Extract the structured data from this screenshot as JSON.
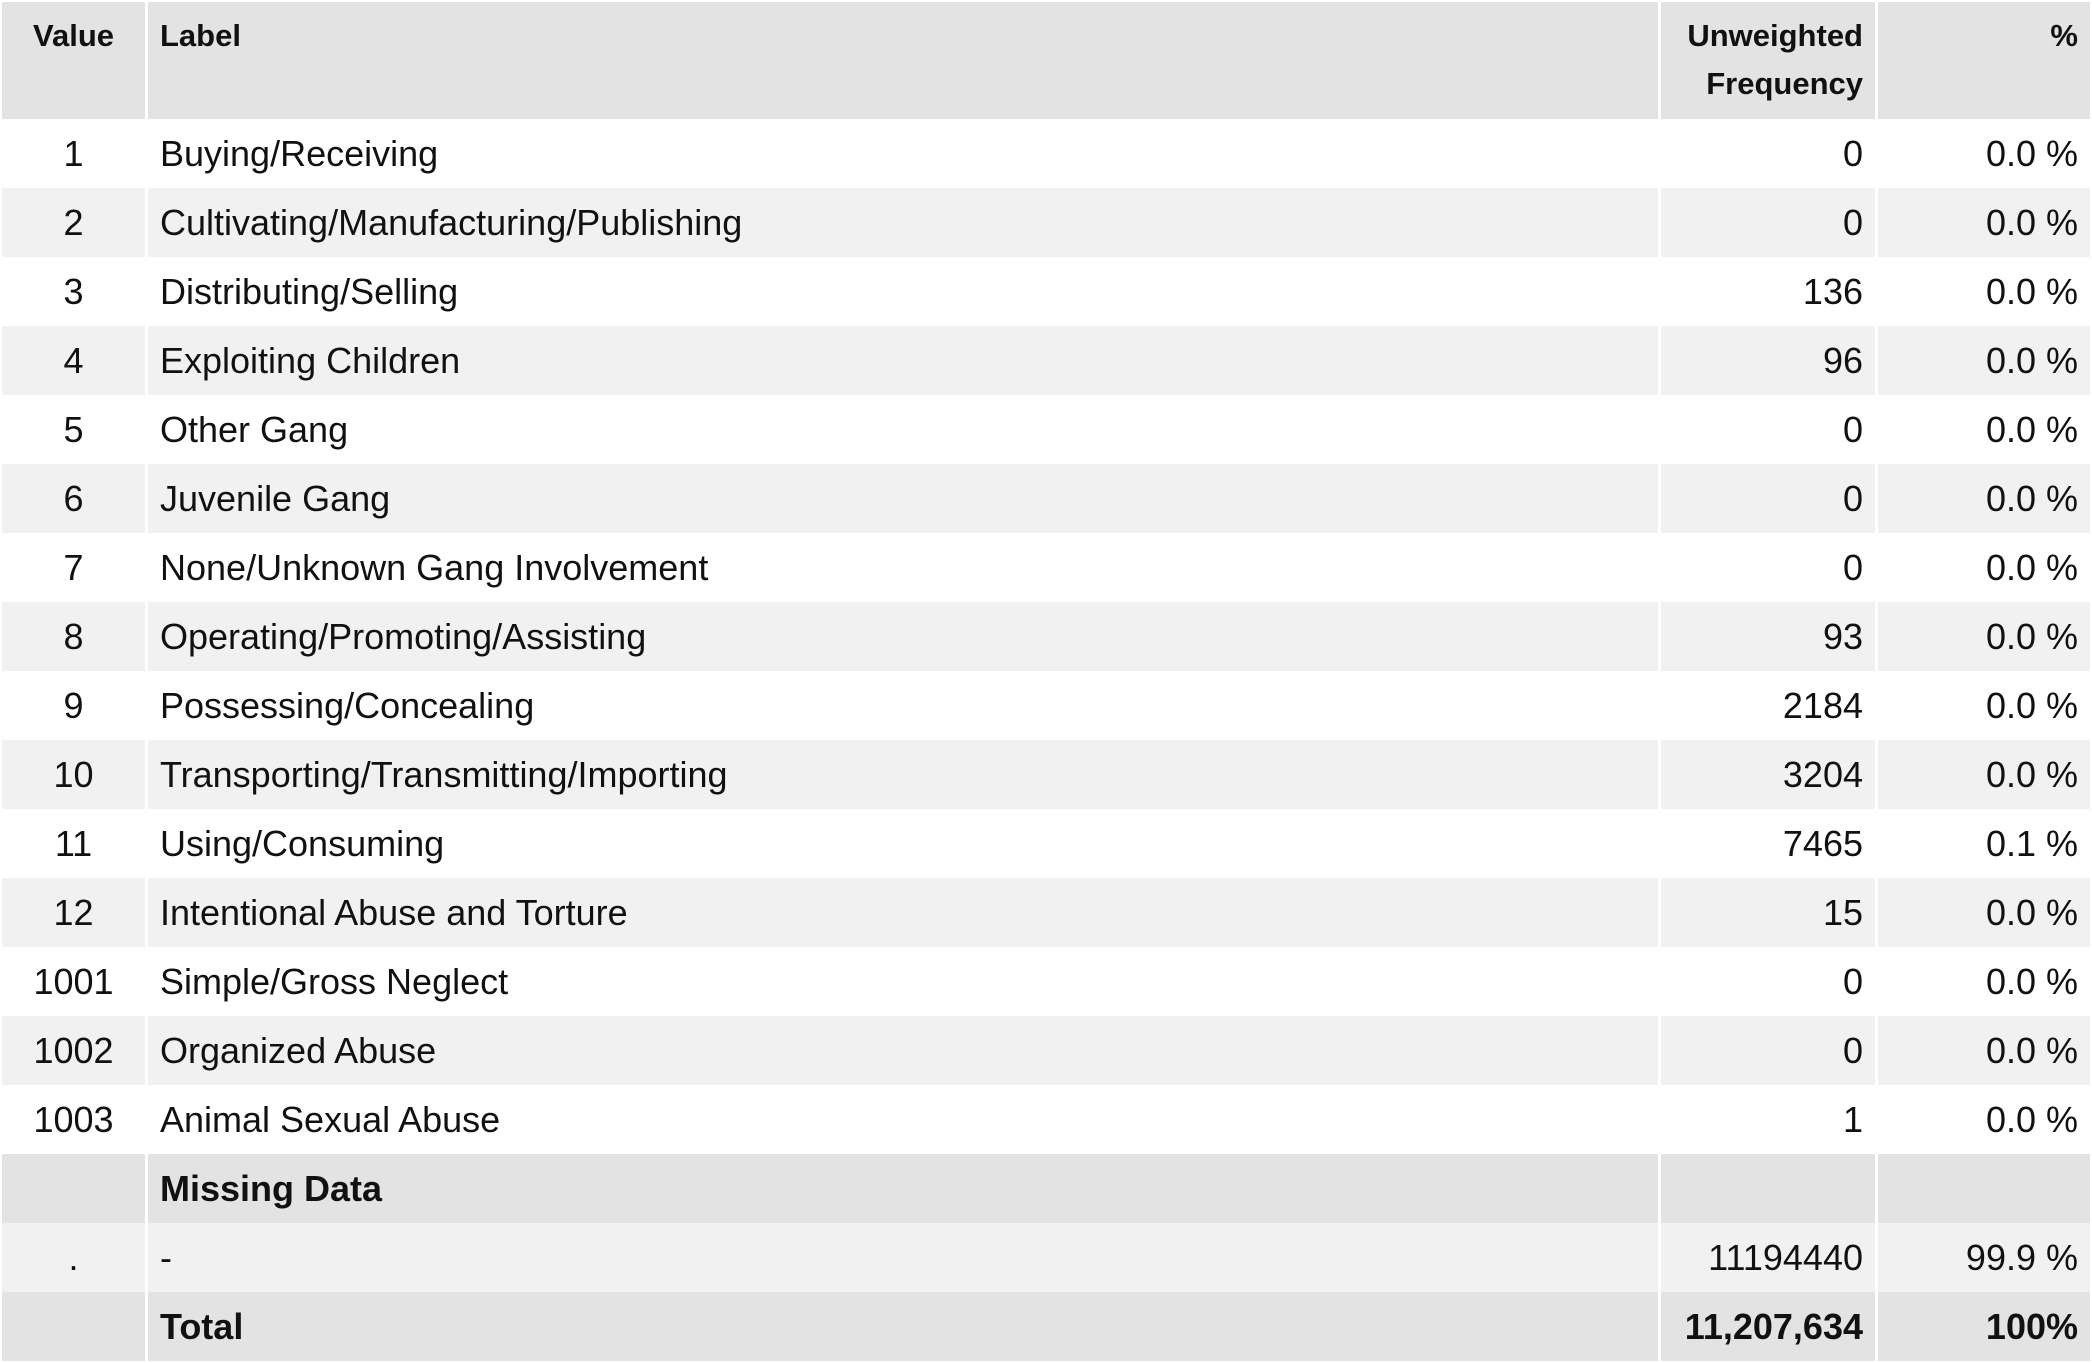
{
  "headers": {
    "value": "Value",
    "label": "Label",
    "frequency_line1": "Unweighted",
    "frequency_line2": "Frequency",
    "percent": "%"
  },
  "rows": [
    {
      "value": "1",
      "label": "Buying/Receiving",
      "frequency": "0",
      "percent": "0.0 %"
    },
    {
      "value": "2",
      "label": "Cultivating/Manufacturing/Publishing",
      "frequency": "0",
      "percent": "0.0 %"
    },
    {
      "value": "3",
      "label": "Distributing/Selling",
      "frequency": "136",
      "percent": "0.0 %"
    },
    {
      "value": "4",
      "label": "Exploiting Children",
      "frequency": "96",
      "percent": "0.0 %"
    },
    {
      "value": "5",
      "label": "Other Gang",
      "frequency": "0",
      "percent": "0.0 %"
    },
    {
      "value": "6",
      "label": "Juvenile Gang",
      "frequency": "0",
      "percent": "0.0 %"
    },
    {
      "value": "7",
      "label": "None/Unknown Gang Involvement",
      "frequency": "0",
      "percent": "0.0 %"
    },
    {
      "value": "8",
      "label": "Operating/Promoting/Assisting",
      "frequency": "93",
      "percent": "0.0 %"
    },
    {
      "value": "9",
      "label": "Possessing/Concealing",
      "frequency": "2184",
      "percent": "0.0 %"
    },
    {
      "value": "10",
      "label": "Transporting/Transmitting/Importing",
      "frequency": "3204",
      "percent": "0.0 %"
    },
    {
      "value": "11",
      "label": "Using/Consuming",
      "frequency": "7465",
      "percent": "0.1 %"
    },
    {
      "value": "12",
      "label": "Intentional Abuse and Torture",
      "frequency": "15",
      "percent": "0.0 %"
    },
    {
      "value": "1001",
      "label": "Simple/Gross Neglect",
      "frequency": "0",
      "percent": "0.0 %"
    },
    {
      "value": "1002",
      "label": "Organized Abuse",
      "frequency": "0",
      "percent": "0.0 %"
    },
    {
      "value": "1003",
      "label": "Animal Sexual Abuse",
      "frequency": "1",
      "percent": "0.0 %"
    }
  ],
  "missing": {
    "section_label": "Missing Data",
    "rows": [
      {
        "value": ".",
        "label": "-",
        "frequency": "11194440",
        "percent": "99.9 %"
      }
    ]
  },
  "total": {
    "label": "Total",
    "frequency": "11,207,634",
    "percent": "100%"
  }
}
